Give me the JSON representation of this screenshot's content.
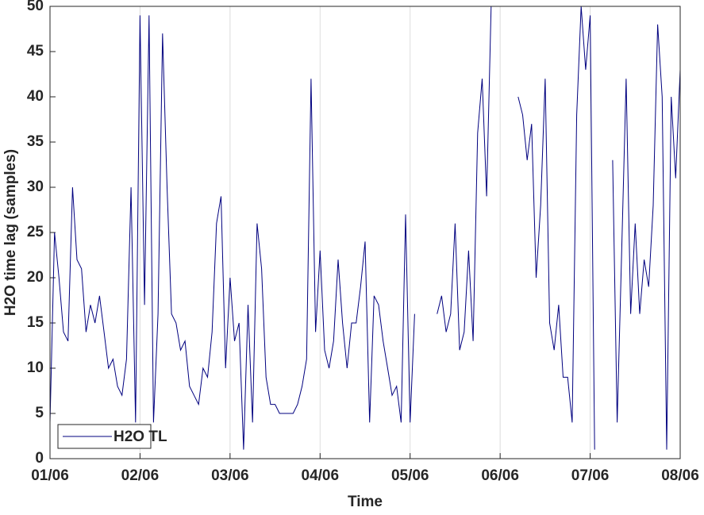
{
  "chart_data": {
    "type": "line",
    "xlabel": "Time",
    "ylabel": "H2O time lag (samples)",
    "x": [
      0,
      0.05,
      0.1,
      0.15,
      0.2,
      0.25,
      0.3,
      0.35,
      0.4,
      0.45,
      0.5,
      0.55,
      0.6,
      0.65,
      0.7,
      0.75,
      0.8,
      0.85,
      0.9,
      0.95,
      1,
      1.05,
      1.1,
      1.15,
      1.2,
      1.25,
      1.3,
      1.35,
      1.4,
      1.45,
      1.5,
      1.55,
      1.6,
      1.65,
      1.7,
      1.75,
      1.8,
      1.85,
      1.9,
      1.95,
      2,
      2.05,
      2.1,
      2.15,
      2.2,
      2.25,
      2.3,
      2.35,
      2.4,
      2.45,
      2.5,
      2.55,
      2.6,
      2.65,
      2.7,
      2.75,
      2.8,
      2.85,
      2.9,
      2.95,
      3,
      3.05,
      3.1,
      3.15,
      3.2,
      3.25,
      3.3,
      3.35,
      3.4,
      3.45,
      3.5,
      3.55,
      3.6,
      3.65,
      3.7,
      3.75,
      3.8,
      3.85,
      3.9,
      3.95,
      4,
      4.05,
      4.1,
      4.15,
      4.2,
      4.25,
      4.3,
      4.35,
      4.4,
      4.45,
      4.5,
      4.55,
      4.6,
      4.65,
      4.7,
      4.75,
      4.8,
      4.85,
      4.9,
      4.95,
      5,
      5.05,
      5.1,
      5.15,
      5.2,
      5.25,
      5.3,
      5.35,
      5.4,
      5.45,
      5.5,
      5.55,
      5.6,
      5.65,
      5.7,
      5.75,
      5.8,
      5.85,
      5.9,
      5.95,
      6,
      6.05,
      6.1,
      6.15,
      6.2,
      6.25,
      6.3,
      6.35,
      6.4,
      6.45,
      6.5,
      6.55,
      6.6,
      6.65,
      6.7,
      6.75,
      6.8,
      6.85,
      6.9,
      6.95,
      7
    ],
    "series": [
      {
        "name": "H2O TL",
        "color": "#00007f",
        "values": [
          4,
          25,
          20,
          14,
          13,
          30,
          22,
          21,
          14,
          17,
          15,
          18,
          14,
          10,
          11,
          8,
          7,
          11,
          30,
          4,
          49,
          17,
          49,
          4,
          16,
          47,
          30,
          16,
          15,
          12,
          13,
          8,
          7,
          6,
          10,
          9,
          14,
          26,
          29,
          10,
          20,
          13,
          15,
          1,
          17,
          4,
          26,
          21,
          9,
          6,
          6,
          5,
          5,
          5,
          5,
          6,
          8,
          11,
          42,
          14,
          23,
          12,
          10,
          13,
          22,
          15,
          10,
          15,
          15,
          19,
          24,
          4,
          18,
          17,
          13,
          10,
          7,
          8,
          4,
          27,
          4,
          16,
          null,
          null,
          null,
          null,
          16,
          18,
          14,
          16,
          26,
          12,
          14,
          23,
          13,
          36,
          42,
          29,
          50,
          null,
          null,
          null,
          null,
          null,
          40,
          38,
          33,
          37,
          20,
          28,
          42,
          15,
          12,
          17,
          9,
          9,
          4,
          38,
          50,
          43,
          49,
          1,
          null,
          null,
          null,
          33,
          4,
          23,
          42,
          16,
          26,
          16,
          22,
          19,
          28,
          48,
          40,
          1,
          40,
          31,
          43
        ]
      }
    ],
    "xlim": [
      0,
      7
    ],
    "xticks": [
      {
        "value": 0,
        "label": "01/06"
      },
      {
        "value": 1,
        "label": "02/06"
      },
      {
        "value": 2,
        "label": "03/06"
      },
      {
        "value": 3,
        "label": "04/06"
      },
      {
        "value": 4,
        "label": "05/06"
      },
      {
        "value": 5,
        "label": "06/06"
      },
      {
        "value": 6,
        "label": "07/06"
      },
      {
        "value": 7,
        "label": "08/06"
      }
    ],
    "ylim": [
      0,
      50
    ],
    "yticks": [
      0,
      5,
      10,
      15,
      20,
      25,
      30,
      35,
      40,
      45,
      50
    ],
    "xgrid": true,
    "legend": "lower left"
  }
}
